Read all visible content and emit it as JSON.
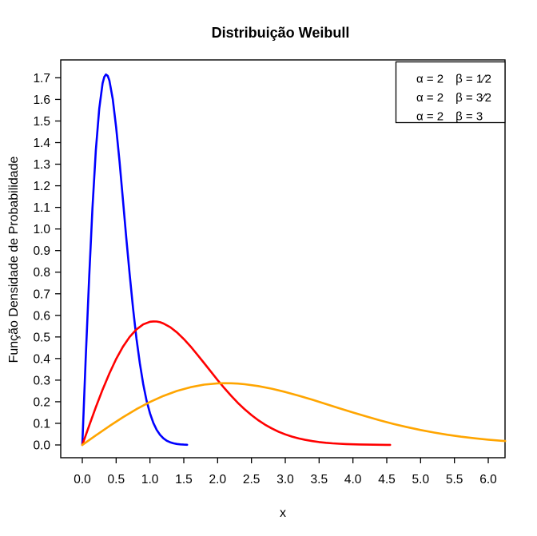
{
  "title": "Distribuição Weibull",
  "chart_data": {
    "type": "line",
    "title": "Distribuição Weibull",
    "xlabel": "x",
    "ylabel": "Função Densidade de Probabilidade",
    "xlim": [
      -0.32,
      6.25
    ],
    "ylim": [
      -0.06,
      1.78
    ],
    "x_ticks": [
      0.0,
      0.5,
      1.0,
      1.5,
      2.0,
      2.5,
      3.0,
      3.5,
      4.0,
      4.5,
      5.0,
      5.5,
      6.0
    ],
    "y_ticks": [
      0.0,
      0.1,
      0.2,
      0.3,
      0.4,
      0.5,
      0.6,
      0.7,
      0.8,
      0.9,
      1.0,
      1.1,
      1.2,
      1.3,
      1.4,
      1.5,
      1.6,
      1.7
    ],
    "grid": false,
    "legend_position": "top-right",
    "legend": {
      "items": [
        {
          "label": "α = 2 β = 1⁄2",
          "color": "#0000FF"
        },
        {
          "label": "α = 2 β = 3⁄2",
          "color": "#FF0000"
        },
        {
          "label": "α = 2 β = 3",
          "color": "#FFA500"
        }
      ]
    },
    "series": [
      {
        "name": "weibull-alpha2-beta-half",
        "label": "α = 2 β = 1⁄2",
        "color": "#0000FF",
        "points": [
          [
            0,
            0
          ],
          [
            0.05,
            0.396
          ],
          [
            0.1,
            0.7686
          ],
          [
            0.15,
            1.0967
          ],
          [
            0.2,
            1.3634
          ],
          [
            0.25,
            1.5576
          ],
          [
            0.3,
            1.6748
          ],
          [
            0.325,
            1.7041
          ],
          [
            0.35,
            1.7153
          ],
          [
            0.375,
            1.7094
          ],
          [
            0.4,
            1.6873
          ],
          [
            0.45,
            1.6016
          ],
          [
            0.5,
            1.4715
          ],
          [
            0.55,
            1.3121
          ],
          [
            0.6,
            1.1372
          ],
          [
            0.65,
            0.9595
          ],
          [
            0.7,
            0.789
          ],
          [
            0.75,
            0.6324
          ],
          [
            0.8,
            0.4946
          ],
          [
            0.85,
            0.3779
          ],
          [
            0.9,
            0.2822
          ],
          [
            0.95,
            0.2054
          ],
          [
            1,
            0.1465
          ],
          [
            1.05,
            0.102
          ],
          [
            1.1,
            0.0697
          ],
          [
            1.15,
            0.0464
          ],
          [
            1.2,
            0.0303
          ],
          [
            1.25,
            0.0193
          ],
          [
            1.3,
            0.0121
          ],
          [
            1.35,
            0.0074
          ],
          [
            1.4,
            0.0044
          ],
          [
            1.45,
            0.0026
          ],
          [
            1.5,
            0.0015
          ],
          [
            1.55,
            0.0008
          ]
        ]
      },
      {
        "name": "weibull-alpha2-beta-3halves",
        "label": "α = 2 β = 3⁄2",
        "color": "#FF0000",
        "points": [
          [
            0,
            0
          ],
          [
            0.1,
            0.0885
          ],
          [
            0.2,
            0.1746
          ],
          [
            0.3,
            0.2562
          ],
          [
            0.4,
            0.3311
          ],
          [
            0.5,
            0.3977
          ],
          [
            0.6,
            0.4545
          ],
          [
            0.7,
            0.5004
          ],
          [
            0.8,
            0.5349
          ],
          [
            0.9,
            0.5581
          ],
          [
            1,
            0.5704
          ],
          [
            1.05,
            0.5718
          ],
          [
            1.1,
            0.5713
          ],
          [
            1.15,
            0.568
          ],
          [
            1.2,
            0.5624
          ],
          [
            1.3,
            0.5452
          ],
          [
            1.4,
            0.5208
          ],
          [
            1.5,
            0.4905
          ],
          [
            1.6,
            0.456
          ],
          [
            1.7,
            0.4183
          ],
          [
            1.8,
            0.3791
          ],
          [
            1.9,
            0.3394
          ],
          [
            2,
            0.3004
          ],
          [
            2.1,
            0.263
          ],
          [
            2.2,
            0.2274
          ],
          [
            2.3,
            0.1946
          ],
          [
            2.4,
            0.1649
          ],
          [
            2.5,
            0.1382
          ],
          [
            2.6,
            0.1146
          ],
          [
            2.7,
            0.0941
          ],
          [
            2.8,
            0.0764
          ],
          [
            2.9,
            0.0614
          ],
          [
            3,
            0.0488
          ],
          [
            3.1,
            0.0385
          ],
          [
            3.2,
            0.03
          ],
          [
            3.3,
            0.0232
          ],
          [
            3.4,
            0.0177
          ],
          [
            3.5,
            0.0134
          ],
          [
            3.6,
            0.0101
          ],
          [
            3.7,
            0.0075
          ],
          [
            3.8,
            0.0055
          ],
          [
            3.9,
            0.004
          ],
          [
            4,
            0.0029
          ],
          [
            4.1,
            0.0021
          ],
          [
            4.2,
            0.0015
          ],
          [
            4.3,
            0.001
          ],
          [
            4.4,
            0.0007
          ],
          [
            4.5,
            0.0005
          ],
          [
            4.55,
            0.0004
          ]
        ]
      },
      {
        "name": "weibull-alpha2-beta-3",
        "label": "α = 2 β = 3",
        "color": "#FFA500",
        "points": [
          [
            0,
            0
          ],
          [
            0.2,
            0.0442
          ],
          [
            0.4,
            0.0873
          ],
          [
            0.6,
            0.1281
          ],
          [
            0.8,
            0.1656
          ],
          [
            1,
            0.1989
          ],
          [
            1.2,
            0.2272
          ],
          [
            1.4,
            0.2502
          ],
          [
            1.6,
            0.2674
          ],
          [
            1.8,
            0.2791
          ],
          [
            2,
            0.2852
          ],
          [
            2.1,
            0.2859
          ],
          [
            2.2,
            0.2857
          ],
          [
            2.3,
            0.284
          ],
          [
            2.4,
            0.2812
          ],
          [
            2.6,
            0.2726
          ],
          [
            2.8,
            0.2604
          ],
          [
            3,
            0.2453
          ],
          [
            3.2,
            0.228
          ],
          [
            3.4,
            0.2092
          ],
          [
            3.6,
            0.1895
          ],
          [
            3.8,
            0.1697
          ],
          [
            4,
            0.1502
          ],
          [
            4.2,
            0.1315
          ],
          [
            4.4,
            0.1137
          ],
          [
            4.6,
            0.0973
          ],
          [
            4.8,
            0.0824
          ],
          [
            5,
            0.0691
          ],
          [
            5.2,
            0.0573
          ],
          [
            5.4,
            0.0471
          ],
          [
            5.6,
            0.0382
          ],
          [
            5.8,
            0.0307
          ],
          [
            6,
            0.0244
          ],
          [
            6.2,
            0.0192
          ],
          [
            6.25,
            0.0181
          ]
        ]
      }
    ],
    "colors": {
      "axis": "#000000",
      "background": "#FFFFFF",
      "series_blue": "#0000FF",
      "series_red": "#FF0000",
      "series_orange": "#FFA500"
    }
  }
}
